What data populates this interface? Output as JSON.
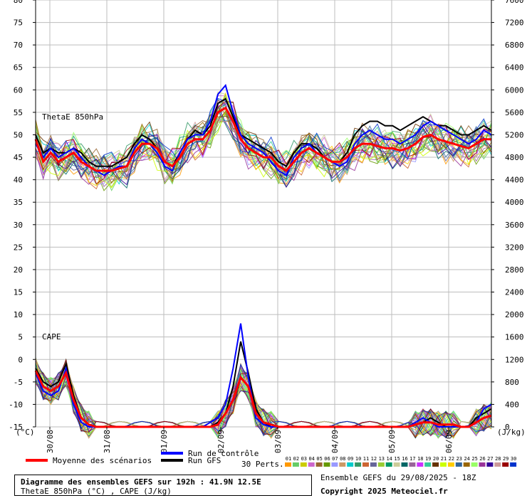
{
  "chart_data": {
    "type": "line",
    "title": "Diagramme des ensembles GEFS sur 192h : 41.9N 12.5E",
    "subtitle": "ThetaE 850hPa (°C) , CAPE (J/kg)",
    "run_info": "Ensemble GEFS du 29/08/2025 - 18Z",
    "copyright": "Copyright 2025 Meteociel.fr",
    "left_axis": {
      "unit": "(°C)",
      "ticks": [
        80,
        75,
        70,
        65,
        60,
        55,
        50,
        45,
        40,
        35,
        30,
        25,
        20,
        15,
        10,
        5,
        0,
        -5,
        -10,
        -15
      ],
      "ylim": [
        -15,
        80
      ]
    },
    "right_axis": {
      "unit": "(J/kg)",
      "ticks": [
        7600,
        7200,
        6800,
        6400,
        6000,
        5600,
        5200,
        4800,
        4400,
        4000,
        3600,
        3200,
        2800,
        2400,
        2000,
        1600,
        1200,
        800,
        400,
        0
      ],
      "ylim": [
        0,
        7600
      ]
    },
    "x_axis": {
      "hours_range": [
        0,
        192
      ],
      "date_labels": [
        {
          "label": "30/08",
          "hour": 6
        },
        {
          "label": "31/08",
          "hour": 30
        },
        {
          "label": "01/09",
          "hour": 54
        },
        {
          "label": "02/09",
          "hour": 78
        },
        {
          "label": "03/09",
          "hour": 102
        },
        {
          "label": "04/09",
          "hour": 126
        },
        {
          "label": "05/09",
          "hour": 150
        },
        {
          "label": "06/09",
          "hour": 174
        }
      ]
    },
    "panels": [
      {
        "label": "ThetaE 850hPa"
      },
      {
        "label": "CAPE"
      }
    ],
    "series": [
      {
        "name": "Moyenne des scénarios",
        "color": "#ff0000",
        "thetae": [
          49,
          44,
          46,
          44,
          45,
          46,
          44,
          43,
          42,
          42,
          42,
          42.5,
          43,
          46,
          48,
          48,
          47,
          44,
          43,
          45,
          48,
          49,
          49,
          51,
          55,
          56,
          53,
          49,
          47,
          46,
          45,
          45,
          43,
          42,
          44,
          46,
          47,
          46,
          45,
          44,
          44,
          45,
          47,
          48,
          48,
          47.5,
          47,
          47,
          46.5,
          47,
          48,
          49.5,
          50,
          49,
          48.5,
          48,
          47.5,
          47,
          48,
          49,
          49
        ],
        "cape": [
          -2.5,
          -6,
          -7,
          -6,
          -3,
          -9,
          -13,
          -14.5,
          -15,
          -15,
          -15,
          -15,
          -15,
          -15,
          -15,
          -15,
          -15,
          -15,
          -15,
          -15,
          -15,
          -15,
          -15,
          -15,
          -14.5,
          -12,
          -9,
          -4,
          -6,
          -12,
          -14,
          -14.5,
          -15,
          -15,
          -15,
          -15,
          -15,
          -15,
          -15,
          -15,
          -15,
          -15,
          -15,
          -15,
          -15,
          -15,
          -15,
          -15,
          -15,
          -15,
          -14.5,
          -14,
          -14,
          -14.5,
          -14.5,
          -14.5,
          -15,
          -15,
          -14,
          -13,
          -12.5
        ]
      },
      {
        "name": "Run de contrôle",
        "color": "#0000ff",
        "thetae": [
          48,
          45,
          47,
          45,
          46,
          47,
          45,
          43,
          42,
          41,
          42,
          43,
          43,
          47,
          49,
          48,
          46,
          43,
          42,
          46,
          49,
          50,
          50,
          53,
          59,
          61,
          55,
          50,
          48,
          47,
          46,
          44,
          42,
          41,
          45,
          47,
          48,
          46,
          45,
          44,
          43,
          44,
          48,
          50,
          51,
          50,
          49,
          49,
          48,
          49,
          50,
          52,
          53,
          52,
          51,
          50,
          49,
          48,
          49,
          51,
          50
        ],
        "cape": [
          -3,
          -7,
          -8,
          -7,
          -2,
          -10,
          -14,
          -15,
          -15,
          -15,
          -15,
          -15,
          -15,
          -15,
          -15,
          -15,
          -15,
          -15,
          -15,
          -15,
          -15,
          -15,
          -15,
          -14,
          -13,
          -10,
          -2,
          8,
          -4,
          -13,
          -14.5,
          -15,
          -15,
          -15,
          -15,
          -15,
          -15,
          -15,
          -15,
          -15,
          -15,
          -15,
          -15,
          -15,
          -15,
          -15,
          -15,
          -15,
          -15,
          -15,
          -14,
          -13,
          -14,
          -15,
          -15,
          -15,
          -15,
          -15,
          -14,
          -11,
          -10
        ]
      },
      {
        "name": "Run GFS",
        "color": "#000000",
        "thetae": [
          50,
          46,
          47,
          46,
          46,
          47,
          46,
          44,
          43,
          43,
          43,
          44,
          45,
          48,
          50,
          49,
          47,
          44,
          43,
          46,
          49,
          51,
          50,
          52,
          57,
          58,
          54,
          50,
          49,
          48,
          47,
          46,
          44,
          43,
          46,
          48,
          48,
          47,
          45,
          44,
          44,
          46,
          50,
          52,
          53,
          53,
          52,
          52,
          51,
          52,
          53,
          54,
          53,
          52,
          52,
          51,
          50,
          50,
          51,
          52,
          51
        ],
        "cape": [
          -2,
          -5,
          -6,
          -5,
          -1,
          -8,
          -13,
          -14.5,
          -15,
          -15,
          -15,
          -15,
          -15,
          -15,
          -15,
          -15,
          -15,
          -15,
          -15,
          -15,
          -15,
          -15,
          -15,
          -15,
          -14,
          -12,
          -6,
          4,
          -3,
          -11,
          -14,
          -15,
          -15,
          -15,
          -15,
          -15,
          -15,
          -15,
          -15,
          -15,
          -15,
          -15,
          -15,
          -15,
          -15,
          -15,
          -15,
          -15,
          -15,
          -15,
          -14.5,
          -14,
          -13,
          -14,
          -15,
          -15,
          -15,
          -15,
          -13,
          -12,
          -11
        ]
      }
    ],
    "ensemble_members": {
      "label": "30 Perts.",
      "count": 30,
      "ids": [
        "01",
        "02",
        "03",
        "04",
        "05",
        "06",
        "07",
        "08",
        "09",
        "10",
        "11",
        "12",
        "13",
        "14",
        "15",
        "16",
        "17",
        "18",
        "19",
        "20",
        "21",
        "22",
        "23",
        "24",
        "25",
        "26",
        "27",
        "28",
        "29",
        "30"
      ],
      "colors": [
        "#ff9900",
        "#66cc66",
        "#cccc00",
        "#cc66cc",
        "#996633",
        "#669900",
        "#9999ff",
        "#cc9966",
        "#00cccc",
        "#339966",
        "#cc6633",
        "#666699",
        "#99cc33",
        "#009966",
        "#cccc99",
        "#006666",
        "#996699",
        "#cc33ff",
        "#33cc99",
        "#663300",
        "#ccff00",
        "#ffcc00",
        "#336699",
        "#996600",
        "#99ff66",
        "#993399",
        "#330099",
        "#cc9999",
        "#990000",
        "#0033cc"
      ]
    },
    "grid": true,
    "legend": "bottom-left"
  }
}
